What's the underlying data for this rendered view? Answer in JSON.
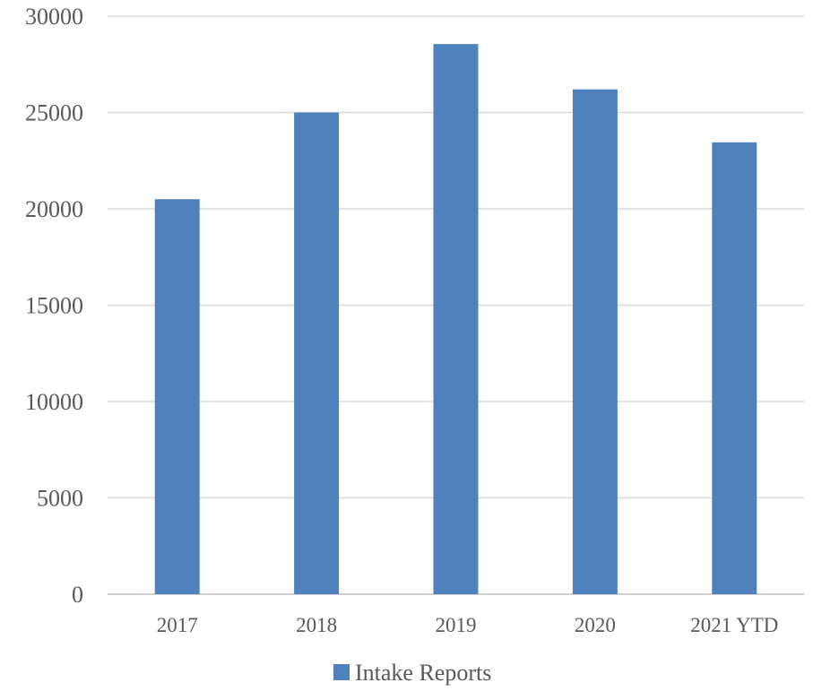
{
  "chart_data": {
    "type": "bar",
    "title": "",
    "xlabel": "",
    "ylabel": "",
    "categories": [
      "2017",
      "2018",
      "2019",
      "2020",
      "2021 YTD"
    ],
    "series": [
      {
        "name": "Intake Reports",
        "values": [
          20500,
          25000,
          28550,
          26200,
          23450
        ],
        "color": "#4f81bd"
      }
    ],
    "ylim": [
      0,
      30000
    ],
    "yticks": [
      "0",
      "5000",
      "10000",
      "15000",
      "20000",
      "25000",
      "30000"
    ],
    "grid": true,
    "legend_position": "bottom-center"
  }
}
